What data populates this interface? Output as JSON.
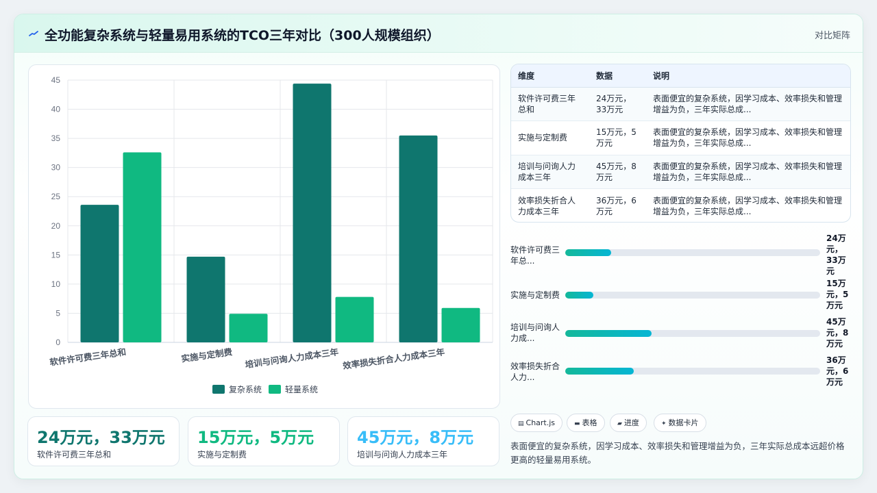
{
  "header": {
    "title": "全功能复杂系统与轻量易用系统的TCO三年对比（300人规模组织）",
    "right_label": "对比矩阵"
  },
  "chart_data": {
    "type": "bar",
    "categories": [
      "软件许可费三年总和",
      "实施与定制费",
      "培训与问询人力成本三年",
      "效率损失折合人力成本三年"
    ],
    "series": [
      {
        "name": "复杂系统",
        "values": [
          23.6,
          14.7,
          44.4,
          35.5
        ],
        "color": "#0f766e"
      },
      {
        "name": "轻量系统",
        "values": [
          32.6,
          4.9,
          7.8,
          5.9
        ],
        "color": "#10b981"
      }
    ],
    "ylim": [
      0,
      45
    ],
    "yticks": [
      0,
      5,
      10,
      15,
      20,
      25,
      30,
      35,
      40,
      45
    ],
    "grid": true,
    "legend": "bottom"
  },
  "stats": [
    {
      "value": "24万元，33万元",
      "label": "软件许可费三年总和",
      "color": "#0f766e"
    },
    {
      "value": "15万元，5万元",
      "label": "实施与定制费",
      "color": "#10b981"
    },
    {
      "value": "45万元，8万元",
      "label": "培训与问询人力成本三年",
      "color": "#38bdf8"
    }
  ],
  "table": {
    "headers": [
      "维度",
      "数据",
      "说明"
    ],
    "rows": [
      [
        "软件许可费三年总和",
        "24万元，33万元",
        "表面便宜的复杂系统，因学习成本、效率损失和管理增益为负，三年实际总成..."
      ],
      [
        "实施与定制费",
        "15万元，5万元",
        "表面便宜的复杂系统，因学习成本、效率损失和管理增益为负，三年实际总成..."
      ],
      [
        "培训与问询人力成本三年",
        "45万元，8万元",
        "表面便宜的复杂系统，因学习成本、效率损失和管理增益为负，三年实际总成..."
      ],
      [
        "效率损失折合人力成本三年",
        "36万元，6万元",
        "表面便宜的复杂系统，因学习成本、效率损失和管理增益为负，三年实际总成..."
      ]
    ]
  },
  "progress": [
    {
      "label": "软件许可费三年总...",
      "value": "24万元，33万元",
      "fraction": 0.18
    },
    {
      "label": "实施与定制费",
      "value": "15万元，5万元",
      "fraction": 0.11
    },
    {
      "label": "培训与问询人力成...",
      "value": "45万元，8万元",
      "fraction": 0.34
    },
    {
      "label": "效率损失折合人力...",
      "value": "36万元，6万元",
      "fraction": 0.27
    }
  ],
  "chips": [
    {
      "icon": "chart-icon",
      "label": "Chart.js"
    },
    {
      "icon": "table-icon",
      "label": "表格"
    },
    {
      "icon": "progress-icon",
      "label": "进度"
    },
    {
      "icon": "sparkle-icon",
      "label": "数据卡片"
    }
  ],
  "summary": "表面便宜的复杂系统，因学习成本、效率损失和管理增益为负，三年实际总成本远超价格更高的轻量易用系统。"
}
